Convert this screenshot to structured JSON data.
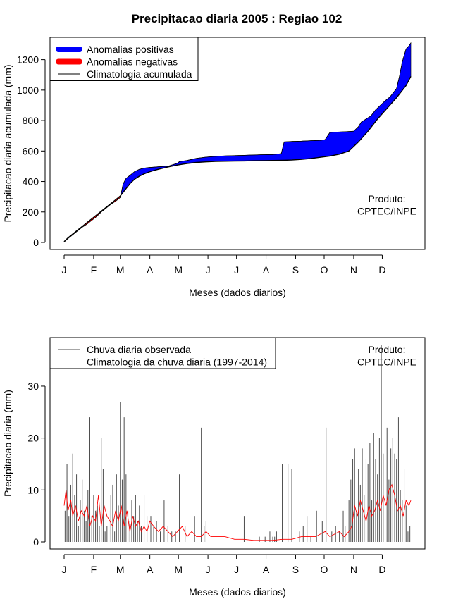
{
  "page_title": "Precipitacao diaria 2005 : Regiao 102",
  "chart_data": [
    {
      "id": "cumulative",
      "type": "area",
      "title": "Precipitacao diaria 2005 : Regiao 102",
      "xlabel": "Meses (dados diarios)",
      "ylabel": "Precipitacao diaria acumulada (mm)",
      "xlim": [
        1,
        365
      ],
      "ylim": [
        0,
        1300
      ],
      "yticks": [
        0,
        200,
        400,
        600,
        800,
        1000,
        1200
      ],
      "month_labels": [
        "J",
        "F",
        "M",
        "A",
        "M",
        "J",
        "J",
        "A",
        "S",
        "O",
        "N",
        "D"
      ],
      "month_starts": [
        1,
        32,
        60,
        91,
        121,
        152,
        182,
        213,
        244,
        274,
        305,
        335
      ],
      "legend": {
        "position": "top-left",
        "entries": [
          {
            "label": "Anomalias positivas",
            "color": "#0000ff",
            "style": "thick"
          },
          {
            "label": "Anomalias negativas",
            "color": "#ff0000",
            "style": "thick"
          },
          {
            "label": "Climatologia acumulada",
            "color": "#000000",
            "style": "line"
          }
        ]
      },
      "annotation": [
        "Produto:",
        "CPTEC/INPE"
      ],
      "climatology_cumulative": {
        "day": [
          1,
          5,
          10,
          15,
          20,
          25,
          30,
          35,
          40,
          45,
          50,
          55,
          60,
          65,
          70,
          75,
          80,
          85,
          90,
          95,
          100,
          110,
          120,
          130,
          140,
          150,
          160,
          170,
          180,
          190,
          200,
          210,
          220,
          230,
          240,
          250,
          260,
          270,
          280,
          290,
          300,
          310,
          320,
          330,
          340,
          350,
          360,
          365
        ],
        "mm": [
          5,
          30,
          55,
          80,
          105,
          130,
          155,
          180,
          205,
          230,
          255,
          280,
          305,
          345,
          385,
          415,
          435,
          450,
          462,
          472,
          480,
          495,
          508,
          518,
          525,
          529,
          532,
          533,
          534,
          535,
          536,
          537,
          538,
          539,
          541,
          545,
          551,
          559,
          567,
          579,
          600,
          660,
          730,
          810,
          880,
          950,
          1030,
          1090
        ]
      },
      "observed_cumulative": {
        "day": [
          1,
          5,
          10,
          15,
          20,
          25,
          30,
          35,
          40,
          45,
          50,
          55,
          60,
          63,
          66,
          70,
          75,
          80,
          85,
          90,
          95,
          100,
          110,
          115,
          120,
          122,
          130,
          140,
          150,
          160,
          170,
          180,
          190,
          200,
          210,
          220,
          225,
          229,
          232,
          240,
          250,
          260,
          270,
          275,
          280,
          290,
          300,
          305,
          310,
          313,
          318,
          323,
          328,
          333,
          338,
          343,
          350,
          353,
          356,
          360,
          363,
          365
        ],
        "mm": [
          3,
          25,
          50,
          75,
          100,
          120,
          145,
          170,
          200,
          225,
          250,
          270,
          295,
          385,
          420,
          440,
          465,
          480,
          488,
          492,
          494,
          497,
          500,
          510,
          520,
          530,
          538,
          552,
          560,
          565,
          568,
          570,
          572,
          574,
          576,
          577,
          580,
          583,
          660,
          663,
          665,
          668,
          670,
          675,
          722,
          725,
          728,
          730,
          760,
          790,
          810,
          830,
          870,
          900,
          930,
          955,
          1010,
          1090,
          1185,
          1270,
          1290,
          1310
        ]
      }
    },
    {
      "id": "daily",
      "type": "bar",
      "xlabel": "Meses (dados diarios)",
      "ylabel": "Precipitacao diaria (mm)",
      "xlim": [
        1,
        365
      ],
      "ylim": [
        0,
        38
      ],
      "yticks": [
        0,
        10,
        20,
        30
      ],
      "month_labels": [
        "J",
        "F",
        "M",
        "A",
        "M",
        "J",
        "J",
        "A",
        "S",
        "O",
        "N",
        "D"
      ],
      "month_starts": [
        1,
        32,
        60,
        91,
        121,
        152,
        182,
        213,
        244,
        274,
        305,
        335
      ],
      "legend": {
        "position": "top-left",
        "entries": [
          {
            "label": "Chuva diaria observada",
            "color": "#4d4d4d",
            "style": "line"
          },
          {
            "label": "Climatologia da chuva diaria (1997-2014)",
            "color": "#ff0000",
            "style": "line"
          }
        ]
      },
      "annotation": [
        "Produto:",
        "CPTEC/INPE"
      ],
      "observed_daily": {
        "day": [
          2,
          4,
          6,
          8,
          10,
          12,
          14,
          16,
          18,
          20,
          22,
          24,
          26,
          28,
          30,
          32,
          34,
          36,
          38,
          40,
          42,
          44,
          46,
          48,
          50,
          52,
          54,
          56,
          58,
          60,
          62,
          64,
          66,
          68,
          70,
          72,
          74,
          76,
          78,
          80,
          82,
          85,
          88,
          92,
          95,
          98,
          102,
          106,
          110,
          114,
          118,
          122,
          128,
          138,
          145,
          148,
          150,
          190,
          206,
          212,
          217,
          220,
          222,
          224,
          230,
          236,
          240,
          248,
          252,
          256,
          260,
          266,
          272,
          276,
          282,
          286,
          290,
          294,
          296,
          300,
          302,
          304,
          306,
          308,
          310,
          312,
          314,
          316,
          318,
          320,
          322,
          324,
          326,
          328,
          330,
          332,
          334,
          336,
          338,
          340,
          342,
          344,
          346,
          348,
          350,
          352,
          354,
          356,
          358,
          360,
          362,
          364
        ],
        "mm": [
          6,
          15,
          5,
          11,
          17,
          9,
          13,
          3,
          8,
          12,
          6,
          4,
          10,
          24,
          5,
          9,
          6,
          7,
          3,
          20,
          14,
          2,
          3,
          6,
          9,
          11,
          2,
          13,
          7,
          27,
          12,
          24,
          13,
          6,
          4,
          8,
          5,
          9,
          4,
          7,
          3,
          9,
          5,
          5,
          3,
          4,
          2,
          8,
          3,
          2,
          2,
          13,
          3,
          5,
          22,
          3,
          4,
          5,
          1,
          1,
          2,
          1,
          1,
          2,
          15,
          15,
          14,
          2,
          3,
          5,
          1,
          6,
          4,
          22,
          2,
          3,
          2,
          6,
          3,
          8,
          12,
          16,
          18,
          6,
          14,
          11,
          18,
          9,
          16,
          15,
          19,
          8,
          21,
          16,
          13,
          20,
          38,
          17,
          14,
          22,
          12,
          18,
          20,
          17,
          16,
          24,
          10,
          8,
          14,
          7,
          2,
          3
        ]
      },
      "climatology_daily": {
        "day": [
          1,
          3,
          5,
          8,
          10,
          13,
          16,
          19,
          22,
          25,
          28,
          31,
          34,
          37,
          40,
          43,
          46,
          49,
          52,
          55,
          58,
          61,
          64,
          67,
          70,
          73,
          76,
          79,
          82,
          85,
          88,
          91,
          95,
          100,
          105,
          110,
          115,
          120,
          125,
          130,
          135,
          140,
          145,
          150,
          155,
          160,
          170,
          180,
          190,
          200,
          210,
          220,
          230,
          240,
          250,
          260,
          265,
          270,
          275,
          280,
          285,
          290,
          295,
          300,
          303,
          306,
          309,
          312,
          315,
          318,
          321,
          324,
          327,
          330,
          333,
          336,
          339,
          342,
          345,
          348,
          351,
          354,
          357,
          360,
          363,
          365
        ],
        "mm": [
          7,
          10,
          6,
          8,
          5,
          7,
          4,
          6,
          5,
          7,
          3,
          5,
          4,
          9,
          3,
          7,
          5,
          4,
          3,
          6,
          4,
          7,
          3,
          6,
          2,
          5,
          3,
          4,
          2,
          3,
          2,
          4,
          3,
          2,
          3,
          2,
          1,
          2,
          3,
          1,
          2,
          1,
          1,
          2,
          1,
          1,
          1,
          0.5,
          0.5,
          0.3,
          0.3,
          0.3,
          0.5,
          0.5,
          1,
          1,
          1,
          1.5,
          2,
          1,
          1.5,
          2,
          1,
          2,
          3,
          7,
          5,
          8,
          6,
          4,
          7,
          5,
          6,
          8,
          6,
          9,
          7,
          10,
          11,
          9,
          6,
          7,
          5,
          8,
          7,
          8
        ]
      }
    }
  ]
}
